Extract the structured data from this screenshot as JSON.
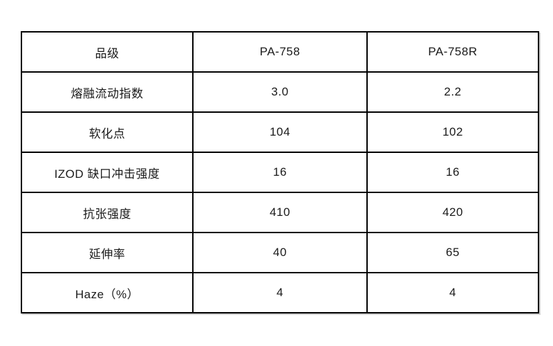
{
  "page": {
    "background_color": "#ffffff",
    "border_color": "#000000",
    "text_color": "#1a1a1a"
  },
  "table": {
    "header": [
      "品级",
      "PA-758",
      "PA-758R"
    ],
    "rows": [
      [
        "熔融流动指数",
        "3.0",
        "2.2"
      ],
      [
        "软化点",
        "104",
        "102"
      ],
      [
        "IZOD 缺口冲击强度",
        "16",
        "16"
      ],
      [
        "抗张强度",
        "410",
        "420"
      ],
      [
        "延伸率",
        "40",
        "65"
      ],
      [
        "Haze（%）",
        "4",
        "4"
      ]
    ]
  }
}
